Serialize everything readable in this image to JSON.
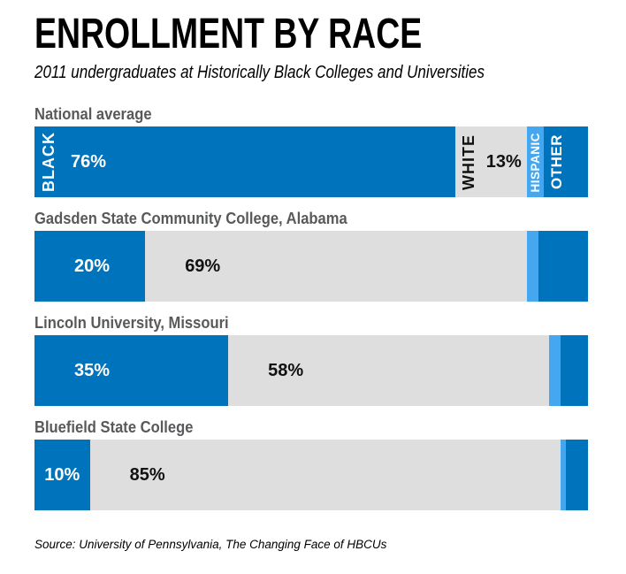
{
  "header": {
    "title": "ENROLLMENT BY RACE",
    "subtitle": "2011 undergraduates at Historically Black Colleges and Universities"
  },
  "footer": {
    "source": "Source: University of Pennsylvania, The Changing Face of HBCUs"
  },
  "chart_data": {
    "type": "bar",
    "orientation": "horizontal-stacked",
    "unit": "percent",
    "title": "ENROLLMENT BY RACE",
    "subtitle": "2011 undergraduates at Historically Black Colleges and Universities",
    "xlim": [
      0,
      100
    ],
    "grid": false,
    "legend_position": "labels-inside-first-bar",
    "colors": {
      "black": "#0073BD",
      "white": "#DEDEDE",
      "hispanic": "#45A7F0",
      "other": "#0073BD"
    },
    "legend_labels": {
      "black": "BLACK",
      "white": "WHITE",
      "hispanic": "HISPANIC",
      "other": "OTHER"
    },
    "categories": [
      "National average",
      "Gadsden State Community College, Alabama",
      "Lincoln University, Missouri",
      "Bluefield State College"
    ],
    "rows": [
      {
        "label": "National average",
        "segments": [
          {
            "race": "black",
            "value": 76,
            "pct_label": "76%"
          },
          {
            "race": "white",
            "value": 13,
            "pct_label": "13%"
          },
          {
            "race": "hispanic",
            "value": 3,
            "pct_label": ""
          },
          {
            "race": "other",
            "value": 8,
            "pct_label": ""
          }
        ]
      },
      {
        "label": "Gadsden State Community College, Alabama",
        "segments": [
          {
            "race": "black",
            "value": 20,
            "pct_label": "20%"
          },
          {
            "race": "white",
            "value": 69,
            "pct_label": "69%"
          },
          {
            "race": "hispanic",
            "value": 2,
            "pct_label": ""
          },
          {
            "race": "other",
            "value": 9,
            "pct_label": ""
          }
        ]
      },
      {
        "label": "Lincoln University, Missouri",
        "segments": [
          {
            "race": "black",
            "value": 35,
            "pct_label": "35%"
          },
          {
            "race": "white",
            "value": 58,
            "pct_label": "58%"
          },
          {
            "race": "hispanic",
            "value": 2,
            "pct_label": ""
          },
          {
            "race": "other",
            "value": 5,
            "pct_label": ""
          }
        ]
      },
      {
        "label": "Bluefield State College",
        "segments": [
          {
            "race": "black",
            "value": 10,
            "pct_label": "10%"
          },
          {
            "race": "white",
            "value": 85,
            "pct_label": "85%"
          },
          {
            "race": "hispanic",
            "value": 1,
            "pct_label": ""
          },
          {
            "race": "other",
            "value": 4,
            "pct_label": ""
          }
        ]
      }
    ]
  }
}
